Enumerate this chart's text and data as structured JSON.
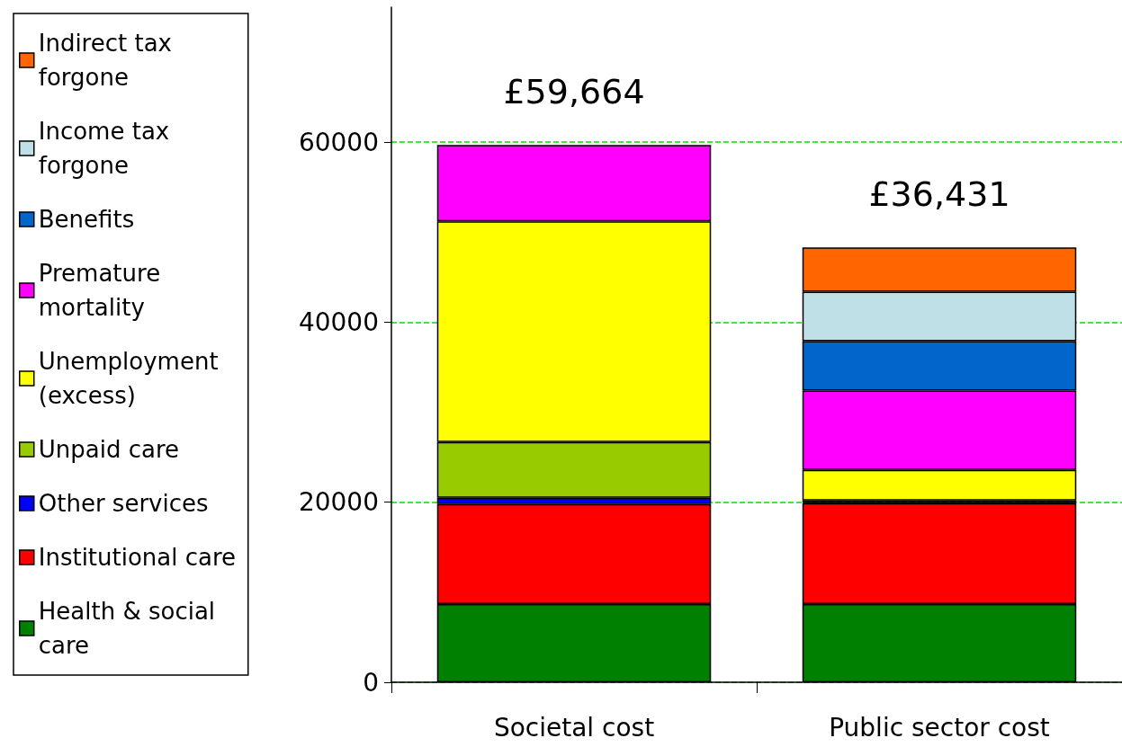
{
  "chart_data": {
    "type": "bar",
    "stacked": true,
    "categories": [
      "Societal cost",
      "Public sector cost"
    ],
    "series": [
      {
        "name": "Health & social care",
        "color": "#008000",
        "values": [
          8700,
          8700
        ]
      },
      {
        "name": "Institutional care",
        "color": "#ff0000",
        "values": [
          11100,
          11200
        ]
      },
      {
        "name": "Other services",
        "color": "#0000ff",
        "values": [
          700,
          100
        ]
      },
      {
        "name": "Unpaid care",
        "color": "#99cc00",
        "values": [
          6200,
          200
        ]
      },
      {
        "name": "Unemployment (excess)",
        "color": "#ffff00",
        "values": [
          24500,
          3400
        ]
      },
      {
        "name": "Premature mortality",
        "color": "#ff00ff",
        "values": [
          8500,
          8800
        ]
      },
      {
        "name": "Benefits",
        "color": "#0066cc",
        "values": [
          null,
          5500
        ]
      },
      {
        "name": "Income tax forgone",
        "color": "#c0e0e8",
        "values": [
          null,
          5500
        ]
      },
      {
        "name": "Indirect tax forgone",
        "color": "#ff6600",
        "values": [
          null,
          4900
        ]
      }
    ],
    "annotations": [
      "£59,664",
      "£36,431"
    ],
    "ylim": [
      0,
      75000
    ],
    "yticks": [
      0,
      {
        "value": 20000,
        "label": "20000"
      },
      {
        "value": 40000,
        "label": "40000"
      },
      {
        "value": 60000,
        "label": "60000"
      }
    ],
    "grid": "y",
    "legend": "left"
  }
}
